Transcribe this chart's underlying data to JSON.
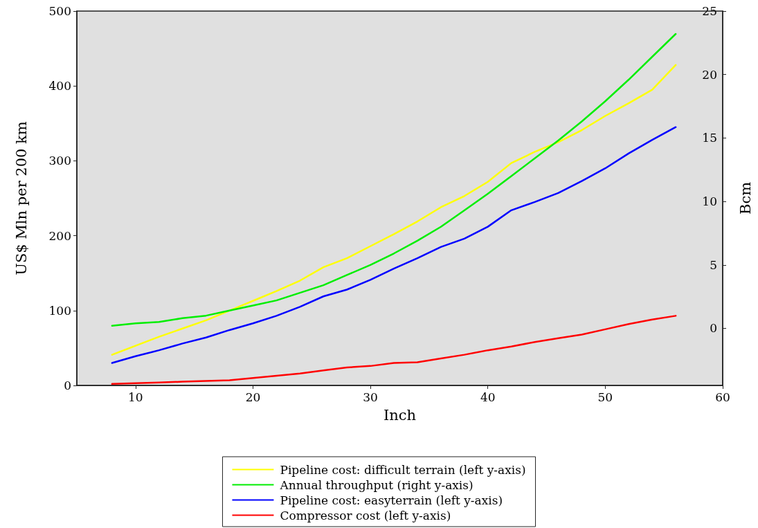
{
  "chart_data": {
    "type": "line",
    "xlabel": "Inch",
    "ylabel": "US$ Mln per 200 km",
    "y2label": "Bcm",
    "x": [
      8,
      10,
      12,
      14,
      16,
      18,
      20,
      22,
      24,
      26,
      28,
      30,
      32,
      34,
      36,
      38,
      40,
      42,
      44,
      46,
      48,
      50,
      52,
      54,
      56
    ],
    "xlim": [
      5,
      60
    ],
    "xticks": [
      10,
      20,
      30,
      40,
      50,
      60
    ],
    "ylim": [
      0,
      500
    ],
    "yticks": [
      0,
      100,
      200,
      300,
      400,
      500
    ],
    "y2lim": [
      -4.5,
      25
    ],
    "y2ticks": [
      0,
      5,
      10,
      15,
      20,
      25
    ],
    "grid": false,
    "legend": "bottom",
    "marker": "none",
    "line_style": "solid",
    "series": [
      {
        "name": "Pipeline cost: difficult terrain (left y-axis)",
        "color": "#ffff00",
        "values": [
          41,
          53,
          65,
          76,
          87,
          100,
          113,
          126,
          140,
          158,
          170,
          186,
          202,
          219,
          238,
          253,
          272,
          297,
          312,
          325,
          341,
          360,
          377,
          395,
          428
        ]
      },
      {
        "name": "Annual throughput (right y-axis)",
        "color": "#00ee00",
        "axis": "y2",
        "values": [
          0.2,
          0.4,
          0.5,
          0.8,
          1.0,
          1.4,
          1.8,
          2.2,
          2.8,
          3.4,
          4.2,
          5.0,
          5.9,
          6.9,
          8.0,
          9.3,
          10.6,
          12.0,
          13.4,
          14.8,
          16.3,
          17.9,
          19.6,
          21.4,
          23.2
        ]
      },
      {
        "name": "Pipeline cost: easyterrain (left y-axis)",
        "color": "#0000ff",
        "values": [
          30,
          39,
          47,
          56,
          64,
          74,
          83,
          93,
          105,
          119,
          128,
          141,
          156,
          170,
          185,
          196,
          212,
          234,
          245,
          257,
          273,
          290,
          310,
          328,
          345
        ]
      },
      {
        "name": "Compressor cost (left y-axis)",
        "color": "#ff0000",
        "values": [
          2,
          3,
          4,
          5,
          6,
          7,
          10,
          13,
          16,
          20,
          24,
          26,
          30,
          31,
          36,
          41,
          47,
          52,
          58,
          63,
          68,
          75,
          82,
          88,
          93
        ]
      }
    ]
  }
}
